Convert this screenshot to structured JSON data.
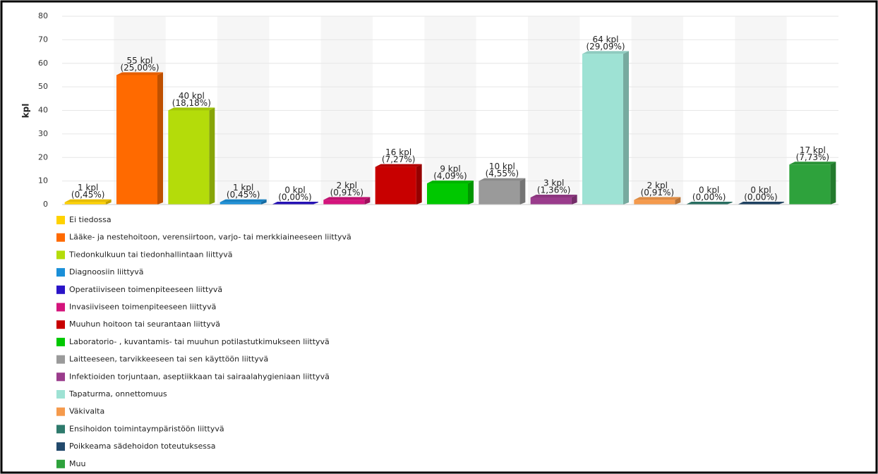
{
  "chart_data": {
    "type": "bar",
    "y_label": "kpl",
    "categories": [
      "Ei tiedossa",
      "Lääke- ja nestehoitoon, verensiirtoon, varjo- tai merkkiaineeseen liittyvä",
      "Tiedonkulkuun tai tiedonhallintaan liittyvä",
      "Diagnoosiin liittyvä",
      "Operatiiviseen toimenpiteeseen liittyvä",
      "Invasiiviseen toimenpiteeseen liittyvä",
      "Muuhun hoitoon tai seurantaan liittyvä",
      "Laboratorio- , kuvantamis- tai muuhun potilastutkimukseen liittyvä",
      "Laitteeseen, tarvikkeeseen tai sen käyttöön liittyvä",
      "Infektioiden torjuntaan, aseptiikkaan tai sairaalahygieniaan liittyvä",
      "Tapaturma, onnettomuus",
      "Väkivalta",
      "Ensihoidon toimintaympäristöön liittyvä",
      "Poikkeama sädehoidon toteutuksessa",
      "Muu"
    ],
    "values": [
      1,
      55,
      40,
      1,
      0,
      2,
      16,
      9,
      10,
      3,
      64,
      2,
      0,
      0,
      17
    ],
    "value_labels": [
      "1 kpl",
      "55 kpl",
      "40 kpl",
      "1 kpl",
      "0 kpl",
      "2 kpl",
      "16 kpl",
      "9 kpl",
      "10 kpl",
      "3 kpl",
      "64 kpl",
      "2 kpl",
      "0 kpl",
      "0 kpl",
      "17 kpl"
    ],
    "percent_labels": [
      "(0,45%)",
      "(25,00%)",
      "(18,18%)",
      "(0,45%)",
      "(0,00%)",
      "(0,91%)",
      "(7,27%)",
      "(4,09%)",
      "(4,55%)",
      "(1,36%)",
      "(29,09%)",
      "(0,91%)",
      "(0,00%)",
      "(0,00%)",
      "(7,73%)"
    ],
    "colors": [
      "#ffd200",
      "#ff6a00",
      "#b4dc0a",
      "#1a8fd8",
      "#2a14c8",
      "#d4147c",
      "#c80000",
      "#00c800",
      "#9a9a9a",
      "#9a3c8c",
      "#9ee2d4",
      "#f59a4c",
      "#2e7a6c",
      "#22496c",
      "#2ea23c"
    ],
    "ylim": [
      0,
      80
    ],
    "yticks": [
      0,
      10,
      20,
      30,
      40,
      50,
      60,
      70,
      80
    ],
    "grid": true
  }
}
